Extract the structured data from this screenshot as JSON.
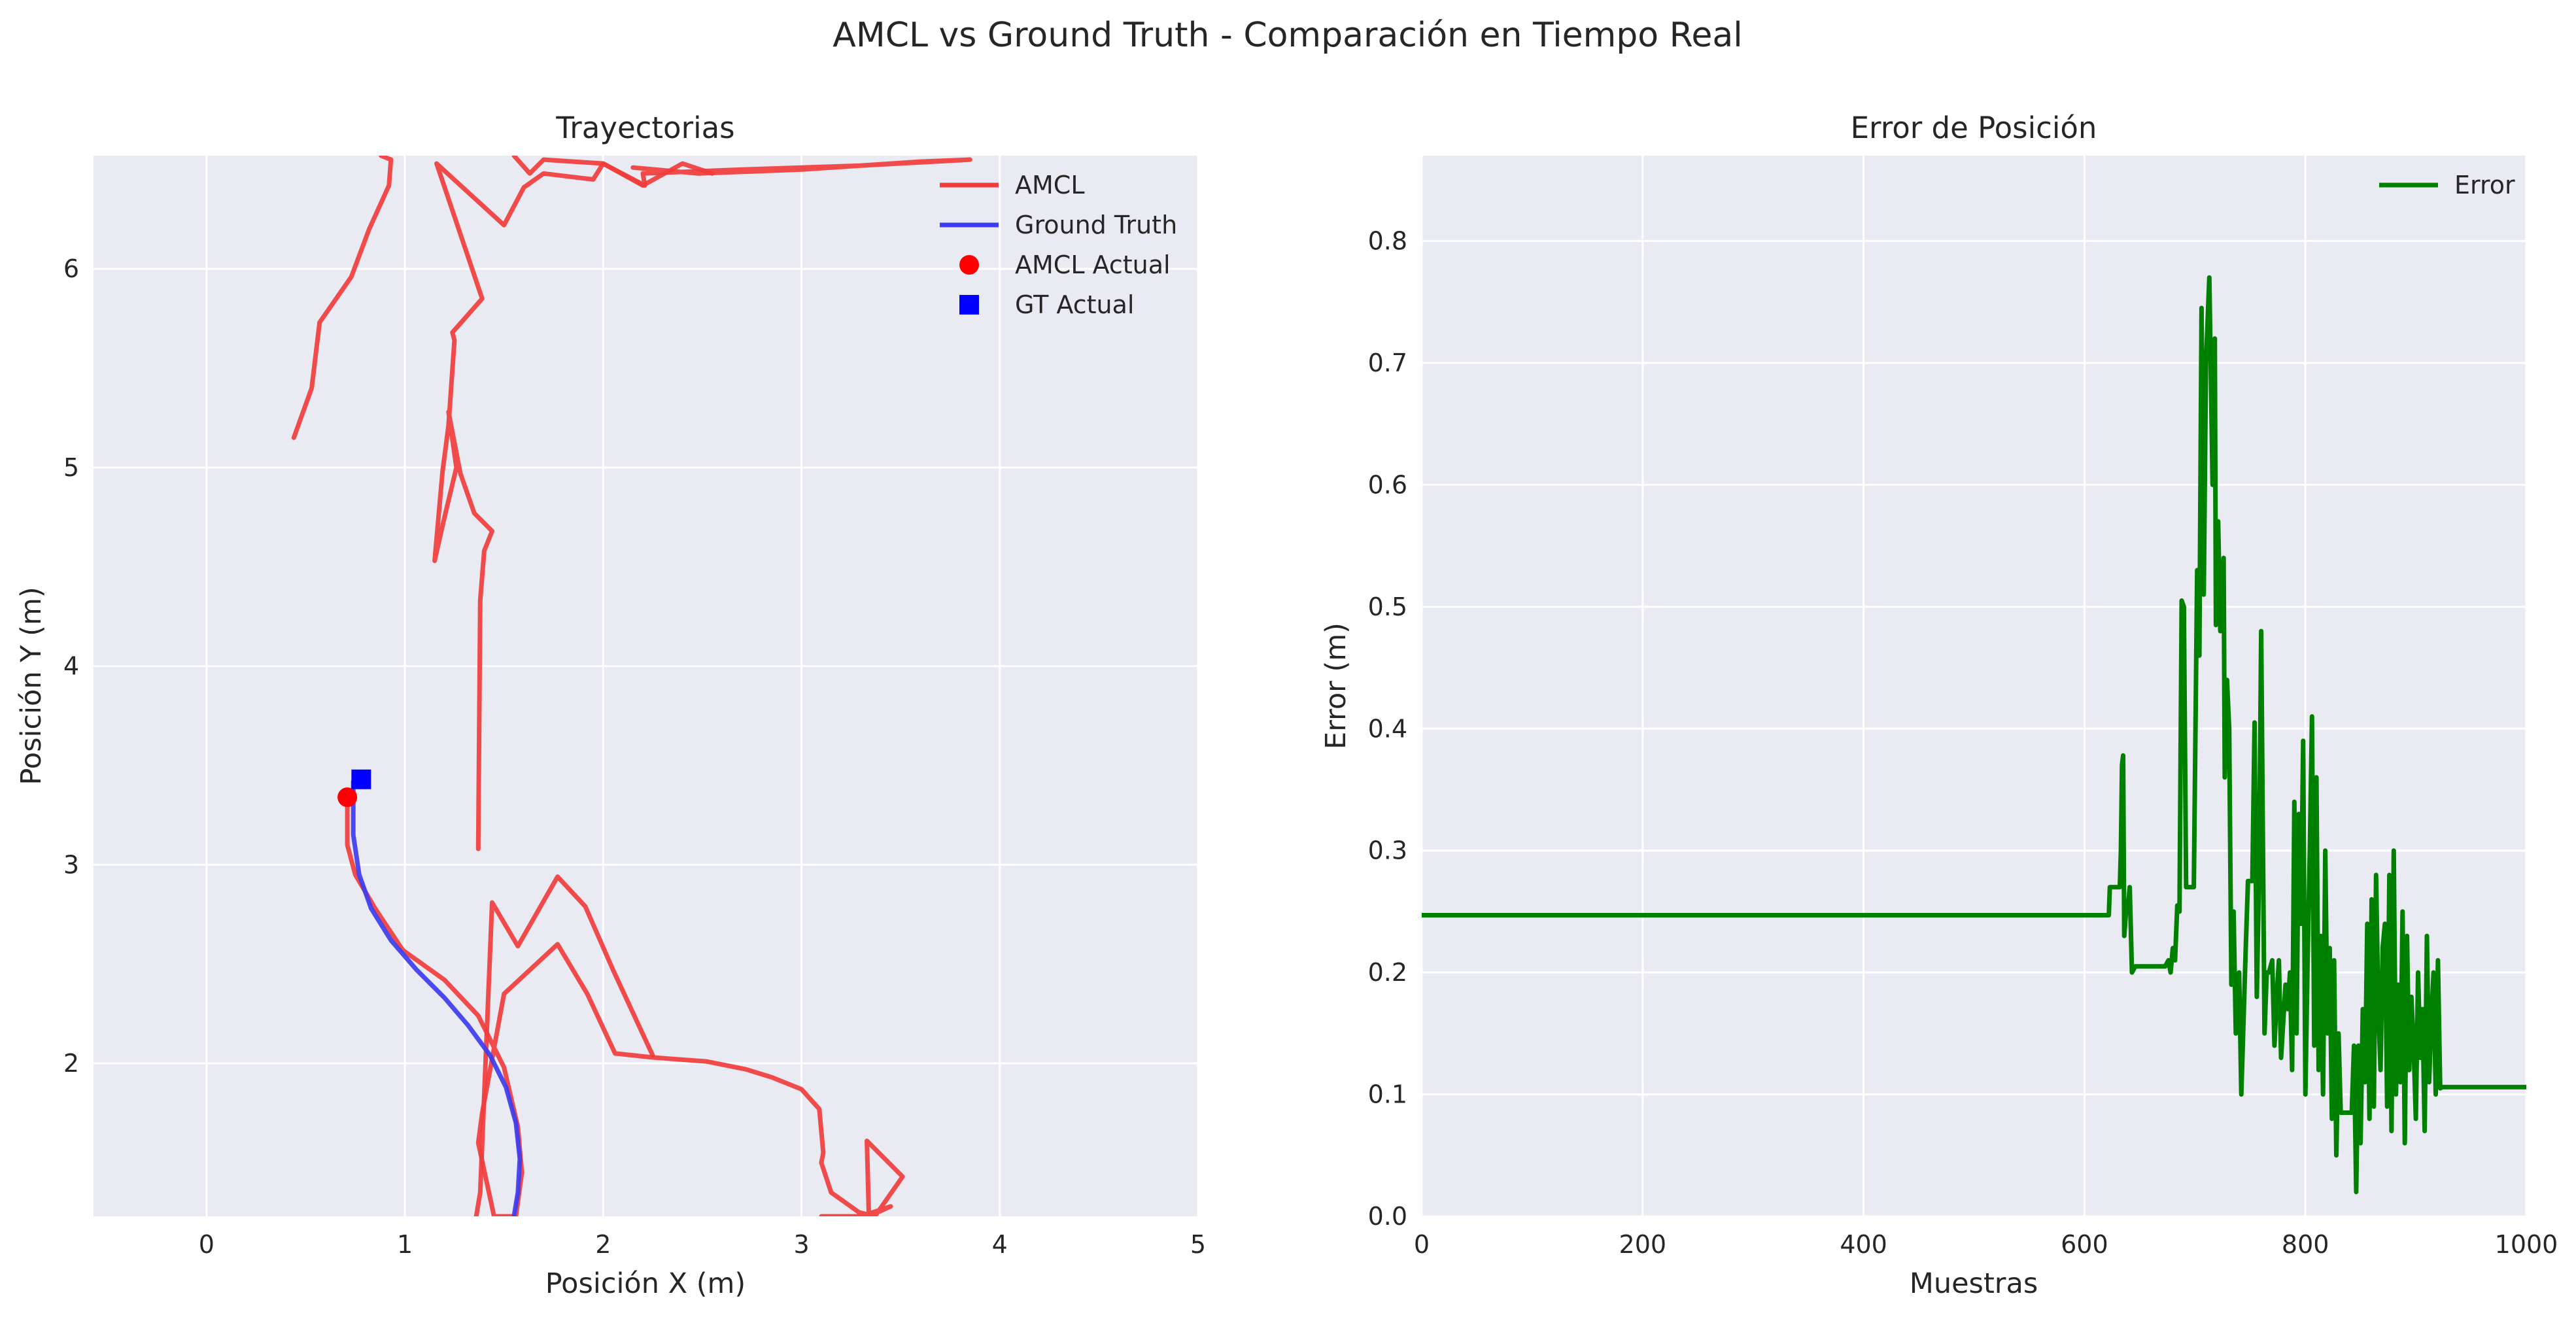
{
  "figure": {
    "suptitle": "AMCL vs Ground Truth - Comparación en Tiempo Real"
  },
  "chart_data": [
    {
      "type": "line",
      "title": "Trayectorias",
      "xlabel": "Posición X (m)",
      "ylabel": "Posición Y (m)",
      "xlim": [
        -0.57,
        5.0
      ],
      "ylim": [
        1.23,
        6.57
      ],
      "xticks": [
        0,
        1,
        2,
        3,
        4,
        5
      ],
      "yticks": [
        2,
        3,
        4,
        5,
        6
      ],
      "grid": true,
      "legend_position": "top-right",
      "series": [
        {
          "name": "AMCL",
          "kind": "line",
          "color": "#f03c3c",
          "x": [
            0.71,
            0.71,
            0.75,
            0.85,
            0.99,
            1.2,
            1.37,
            1.5,
            1.57,
            1.59,
            1.56,
            1.45,
            1.37,
            1.39,
            1.5,
            1.77,
            1.92,
            2.06,
            2.25,
            2.52,
            2.72,
            2.85,
            3.0,
            3.09,
            3.11,
            3.1,
            3.15,
            3.29,
            3.37,
            3.51,
            3.33,
            3.34,
            3.45,
            3.3,
            3.3,
            3.1
          ],
          "y": [
            3.34,
            3.1,
            2.95,
            2.78,
            2.57,
            2.42,
            2.24,
            1.98,
            1.68,
            1.45,
            1.23,
            1.23,
            1.6,
            1.75,
            2.35,
            2.6,
            2.35,
            2.05,
            2.03,
            2.01,
            1.97,
            1.93,
            1.87,
            1.77,
            1.55,
            1.5,
            1.35,
            1.25,
            1.23,
            1.43,
            1.61,
            1.23,
            1.28,
            1.23,
            1.23,
            1.23
          ]
        },
        {
          "name": "",
          "kind": "line",
          "color": "#f03c3c",
          "x": [
            1.36,
            1.38,
            1.44,
            1.57,
            1.77,
            1.91,
            2.05,
            2.25
          ],
          "y": [
            1.23,
            1.35,
            2.81,
            2.59,
            2.94,
            2.79,
            2.47,
            2.04
          ]
        },
        {
          "name": "",
          "kind": "line",
          "color": "#f03c3c",
          "x": [
            1.37,
            1.38,
            1.4,
            1.44,
            1.35,
            1.28,
            1.22,
            1.26,
            1.2,
            1.15,
            1.19,
            1.22,
            1.25,
            1.24,
            1.39,
            1.16,
            1.5,
            1.6,
            1.7,
            1.95,
            2.0,
            2.2,
            2.4,
            2.55
          ],
          "y": [
            3.08,
            4.33,
            4.58,
            4.68,
            4.77,
            4.97,
            5.28,
            5.0,
            4.75,
            4.53,
            4.98,
            5.21,
            5.64,
            5.68,
            5.85,
            6.53,
            6.22,
            6.41,
            6.48,
            6.45,
            6.53,
            6.42,
            6.53,
            6.48
          ]
        },
        {
          "name": "",
          "kind": "line",
          "color": "#f03c3c",
          "x": [
            2.15,
            2.48,
            3.0,
            3.6,
            3.85,
            3.3,
            2.7,
            2.2,
            2.21,
            2.0,
            1.7,
            1.63,
            1.55
          ],
          "y": [
            6.51,
            6.48,
            6.5,
            6.54,
            6.55,
            6.52,
            6.5,
            6.48,
            6.42,
            6.53,
            6.55,
            6.48,
            6.57
          ]
        },
        {
          "name": "",
          "kind": "line",
          "color": "#f03c3c",
          "x": [
            0.44,
            0.53,
            0.57,
            0.73,
            0.82,
            0.92,
            0.93,
            0.88
          ],
          "y": [
            5.15,
            5.4,
            5.73,
            5.96,
            6.2,
            6.42,
            6.55,
            6.57
          ]
        },
        {
          "name": "Ground Truth",
          "kind": "line",
          "color": "#3c3cf0",
          "x": [
            0.74,
            0.74,
            0.77,
            0.83,
            0.93,
            1.06,
            1.2,
            1.32,
            1.43,
            1.51,
            1.56,
            1.58,
            1.57,
            1.55
          ],
          "y": [
            3.42,
            3.15,
            2.95,
            2.78,
            2.62,
            2.47,
            2.33,
            2.19,
            2.04,
            1.88,
            1.7,
            1.52,
            1.35,
            1.23
          ]
        },
        {
          "name": "AMCL Actual",
          "kind": "marker",
          "marker": "circle",
          "color": "#ff0000",
          "x": [
            0.71
          ],
          "y": [
            3.34
          ]
        },
        {
          "name": "GT Actual",
          "kind": "marker",
          "marker": "square",
          "color": "#0000ff",
          "x": [
            0.78
          ],
          "y": [
            3.43
          ]
        }
      ]
    },
    {
      "type": "line",
      "title": "Error de Posición",
      "xlabel": "Muestras",
      "ylabel": "Error (m)",
      "xlim": [
        0,
        1000
      ],
      "ylim": [
        0,
        0.87
      ],
      "xticks": [
        0,
        200,
        400,
        600,
        800,
        1000
      ],
      "yticks": [
        0.0,
        0.1,
        0.2,
        0.3,
        0.4,
        0.5,
        0.6,
        0.7,
        0.8
      ],
      "ytick_labels": [
        "0.0",
        "0.1",
        "0.2",
        "0.3",
        "0.4",
        "0.5",
        "0.6",
        "0.7",
        "0.8"
      ],
      "grid": true,
      "legend_position": "top-right",
      "series": [
        {
          "name": "Error",
          "color": "#008000",
          "x": [
            0,
            622,
            623,
            632,
            633,
            634,
            635,
            636,
            638,
            640,
            641,
            643,
            646,
            647,
            660,
            673,
            676,
            678,
            680,
            682,
            684,
            686,
            688,
            690,
            692,
            694,
            696,
            699,
            702,
            704,
            706,
            708,
            710,
            713,
            716,
            718,
            719,
            721,
            723,
            726,
            727,
            729,
            731,
            733,
            735,
            737,
            740,
            742,
            744,
            746,
            748,
            750,
            752,
            754,
            756,
            758,
            760,
            763,
            765,
            767,
            770,
            772,
            774,
            776,
            778,
            780,
            782,
            784,
            786,
            788,
            790,
            792,
            794,
            796,
            798,
            800,
            802,
            804,
            806,
            808,
            810,
            812,
            814,
            816,
            818,
            820,
            822,
            824,
            826,
            828,
            830,
            832,
            834,
            836,
            838,
            840,
            842,
            844,
            846,
            848,
            850,
            852,
            854,
            856,
            858,
            860,
            862,
            864,
            866,
            868,
            870,
            872,
            874,
            876,
            878,
            880,
            882,
            884,
            886,
            888,
            890,
            892,
            894,
            896,
            898,
            900,
            902,
            904,
            906,
            908,
            910,
            912,
            914,
            916,
            918,
            920,
            922,
            924,
            926,
            928,
            1000
          ],
          "y": [
            0.247,
            0.247,
            0.27,
            0.27,
            0.3,
            0.37,
            0.378,
            0.23,
            0.255,
            0.26,
            0.27,
            0.2,
            0.205,
            0.205,
            0.205,
            0.205,
            0.21,
            0.2,
            0.22,
            0.21,
            0.255,
            0.25,
            0.505,
            0.5,
            0.27,
            0.27,
            0.27,
            0.27,
            0.53,
            0.46,
            0.745,
            0.51,
            0.7,
            0.77,
            0.6,
            0.72,
            0.485,
            0.57,
            0.48,
            0.54,
            0.36,
            0.44,
            0.4,
            0.19,
            0.25,
            0.15,
            0.2,
            0.1,
            0.16,
            0.22,
            0.275,
            0.275,
            0.275,
            0.405,
            0.18,
            0.28,
            0.48,
            0.15,
            0.2,
            0.2,
            0.21,
            0.14,
            0.18,
            0.21,
            0.13,
            0.16,
            0.19,
            0.17,
            0.2,
            0.12,
            0.34,
            0.15,
            0.33,
            0.24,
            0.39,
            0.1,
            0.21,
            0.3,
            0.41,
            0.14,
            0.36,
            0.12,
            0.23,
            0.1,
            0.3,
            0.15,
            0.22,
            0.08,
            0.21,
            0.05,
            0.15,
            0.085,
            0.085,
            0.085,
            0.085,
            0.085,
            0.085,
            0.14,
            0.02,
            0.14,
            0.06,
            0.17,
            0.11,
            0.24,
            0.08,
            0.26,
            0.09,
            0.28,
            0.17,
            0.12,
            0.22,
            0.24,
            0.09,
            0.28,
            0.07,
            0.3,
            0.1,
            0.19,
            0.11,
            0.25,
            0.06,
            0.23,
            0.12,
            0.18,
            0.14,
            0.08,
            0.2,
            0.13,
            0.17,
            0.07,
            0.23,
            0.11,
            0.16,
            0.2,
            0.1,
            0.21,
            0.105,
            0.106,
            0.106,
            0.106,
            0.106
          ]
        }
      ]
    }
  ]
}
